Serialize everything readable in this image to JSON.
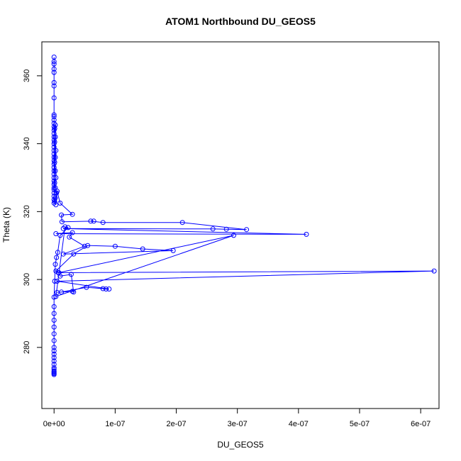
{
  "chart_data": {
    "type": "scatter",
    "title": "ATOM1 Northbound DU_GEOS5",
    "xlabel": "DU_GEOS5",
    "ylabel": "Theta (K)",
    "xlim": [
      -2e-08,
      6.3e-07
    ],
    "ylim": [
      262,
      370
    ],
    "x_ticks": [
      0,
      1e-07,
      2e-07,
      3e-07,
      4e-07,
      5e-07,
      6e-07
    ],
    "x_tick_labels": [
      "0e+00",
      "1e-07",
      "2e-07",
      "3e-07",
      "4e-07",
      "5e-07",
      "6e-07"
    ],
    "y_ticks": [
      280,
      300,
      320,
      340,
      360
    ],
    "y_tick_labels": [
      "280",
      "300",
      "320",
      "340",
      "360"
    ],
    "grid": false,
    "legend": "none",
    "color": "#0000ff",
    "marker": "open-circle",
    "connected": true,
    "series": [
      {
        "x": [
          0,
          0,
          0,
          0,
          0,
          0,
          0,
          0,
          0,
          0,
          0,
          0,
          0,
          0,
          0,
          0,
          0,
          0,
          0,
          0,
          0,
          0,
          0,
          0,
          0,
          0,
          0,
          0,
          0,
          0,
          0,
          0,
          0,
          0,
          0,
          0,
          2e-09,
          1e-09,
          2e-09,
          1e-09,
          3e-09,
          2e-09,
          1e-09,
          2e-09,
          3e-09,
          1e-09,
          2e-09,
          4e-09,
          2e-09,
          1e-09,
          3e-09,
          5e-09,
          1e-08,
          3e-08,
          1.2e-08,
          1.3e-08,
          6.5e-08,
          6e-08,
          8e-08,
          2.1e-07,
          3.15e-07,
          2.82e-07,
          2.6e-07,
          1.5e-08,
          4.13e-07,
          3e-09,
          3e-08,
          2.5e-08,
          5e-08,
          1.5e-08,
          1.95e-07,
          1.45e-07,
          1e-07,
          5.5e-08,
          3.2e-08,
          3e-09,
          8e-09,
          6.22e-07,
          5e-09,
          9e-08,
          8.5e-08,
          8e-08,
          5.3e-08,
          1.2e-08,
          5e-09,
          3e-08,
          3.2e-08,
          2.8e-08,
          1e-08,
          7e-09,
          2.94e-07,
          3e-09,
          1.8e-08,
          2.3e-08,
          1e-08,
          6e-09,
          4e-09,
          2e-09,
          1e-09,
          0,
          0,
          0,
          0,
          0,
          0,
          0,
          0,
          0,
          0,
          0,
          0,
          0,
          0,
          0,
          0,
          0,
          0,
          0,
          0
        ],
        "y": [
          365.5,
          364.2,
          363.5,
          362.0,
          361.0,
          358.0,
          357.0,
          353.5,
          348.5,
          348.0,
          347.0,
          346.0,
          345.0,
          344.0,
          343.0,
          342.0,
          341.0,
          340.0,
          339.0,
          338.0,
          337.0,
          336.0,
          335.0,
          334.0,
          333.0,
          332.0,
          331.0,
          330.0,
          329.0,
          328.0,
          327.0,
          326.5,
          325.5,
          324.5,
          323.5,
          322.5,
          345.5,
          344.5,
          342.0,
          340.5,
          338.0,
          336.0,
          334.5,
          332.0,
          330.0,
          328.5,
          327.0,
          325.5,
          324.0,
          323.0,
          322.0,
          326.0,
          322.5,
          319.2,
          319.0,
          317.0,
          317.2,
          317.2,
          316.8,
          316.8,
          314.7,
          314.8,
          314.9,
          315.0,
          313.3,
          313.5,
          313.8,
          312.5,
          309.8,
          307.5,
          308.5,
          309.0,
          309.8,
          310.0,
          307.5,
          302.5,
          302.0,
          302.5,
          299.5,
          297.2,
          297.2,
          297.3,
          297.7,
          296.3,
          296.2,
          296.5,
          296.3,
          301.5,
          301.0,
          302.0,
          313.0,
          295.0,
          315.5,
          315.3,
          313.0,
          308.0,
          306.5,
          304.5,
          299.5,
          294.8,
          292.0,
          290.0,
          288.0,
          286.0,
          284.0,
          282.0,
          280.0,
          279.0,
          278.0,
          277.0,
          276.0,
          275.0,
          274.0,
          273.5,
          273.0,
          272.8,
          272.5,
          272.3,
          272.0
        ]
      }
    ]
  }
}
